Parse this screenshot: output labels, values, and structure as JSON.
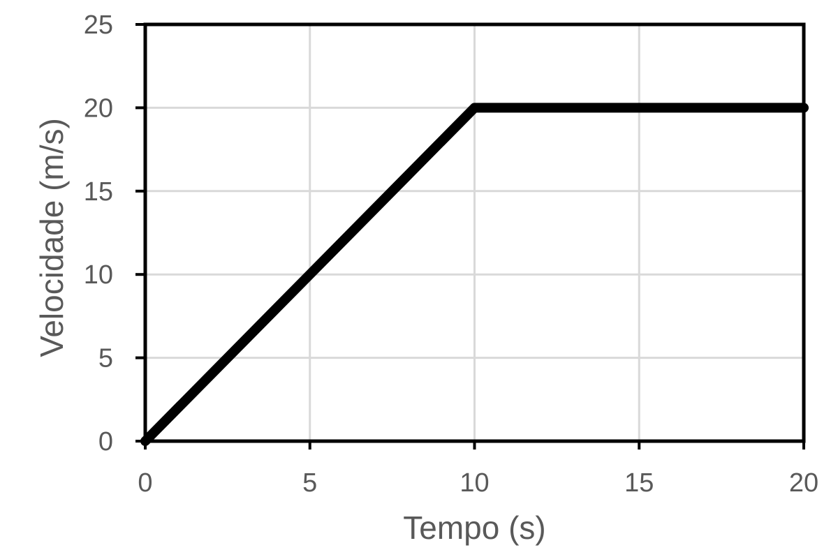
{
  "chart_data": {
    "type": "line",
    "title": "",
    "xlabel": "Tempo (s)",
    "ylabel": "Velocidade (m/s)",
    "xlim": [
      0,
      20
    ],
    "ylim": [
      0,
      25
    ],
    "xticks": [
      "0",
      "5",
      "10",
      "15",
      "20"
    ],
    "yticks": [
      "0",
      "5",
      "10",
      "15",
      "20",
      "25"
    ],
    "grid": true,
    "legend": "none",
    "series": [
      {
        "x": [
          0,
          10,
          20
        ],
        "y": [
          0,
          20,
          20
        ],
        "color": "#000000"
      }
    ],
    "colors": {
      "line": "#000000",
      "grid": "#d9d9d9",
      "frame": "#000000",
      "text": "#595959"
    }
  }
}
